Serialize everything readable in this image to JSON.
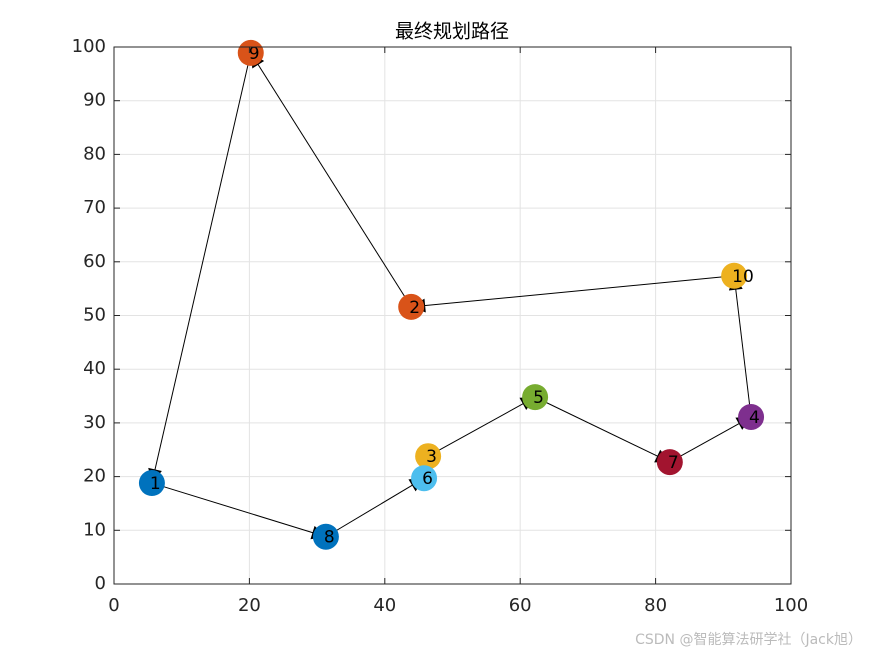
{
  "chart_data": {
    "type": "route",
    "title": "最终规划路径",
    "labels": [
      "1",
      "2",
      "3",
      "4",
      "5",
      "6",
      "7",
      "8",
      "9",
      "10"
    ],
    "x": [
      5.6,
      43.9,
      46.4,
      94.1,
      62.2,
      45.8,
      82.1,
      31.3,
      20.2,
      91.6
    ],
    "y": [
      18.8,
      51.6,
      23.8,
      31.1,
      34.8,
      19.7,
      22.7,
      8.8,
      98.9,
      57.4
    ],
    "colors": [
      "#0072BD",
      "#D95319",
      "#EDB120",
      "#7E2F8E",
      "#77AC30",
      "#4DBEEE",
      "#A2142F",
      "#0072BD",
      "#D95319",
      "#EDB120"
    ],
    "route": [
      1,
      8,
      6,
      3,
      5,
      7,
      4,
      10,
      2,
      9,
      1
    ],
    "xlim": [
      0,
      100
    ],
    "xticks": [
      0,
      20,
      40,
      60,
      80,
      100
    ],
    "ylim": [
      0,
      100
    ],
    "yticks": [
      0,
      10,
      20,
      30,
      40,
      50,
      60,
      70,
      80,
      90,
      100
    ],
    "grid": true,
    "watermark": "CSDN @智能算法研学社（Jack旭）"
  }
}
